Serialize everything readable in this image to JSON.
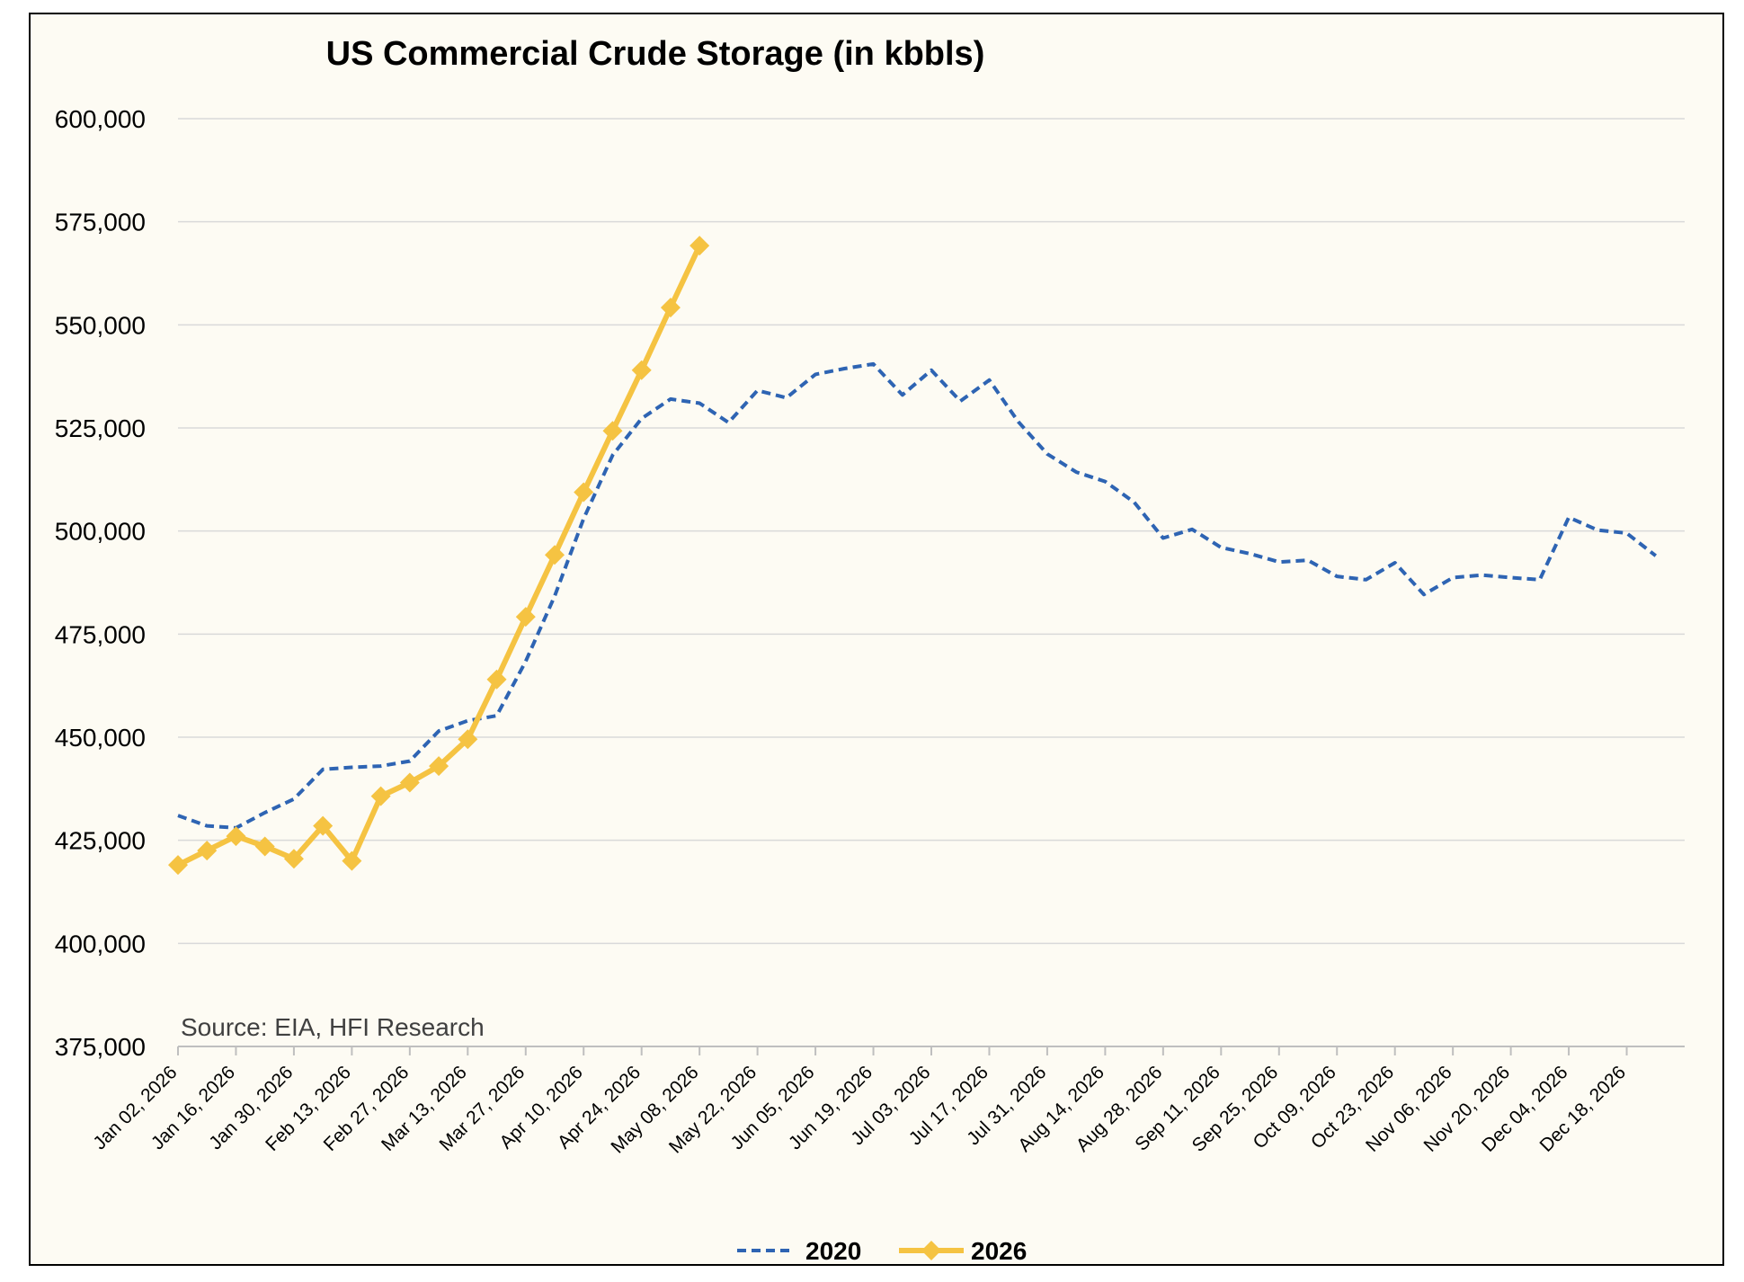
{
  "chart_data": {
    "type": "line",
    "title": "US Commercial Crude Storage (in kbbls)",
    "annotation": "Source: EIA, HFI Research",
    "xlabel": "",
    "ylabel": "",
    "ylim": [
      375000,
      600000
    ],
    "yticks": [
      375000,
      400000,
      425000,
      450000,
      475000,
      500000,
      525000,
      550000,
      575000,
      600000
    ],
    "ytick_labels": [
      "375,000",
      "400,000",
      "425,000",
      "450,000",
      "475,000",
      "500,000",
      "525,000",
      "550,000",
      "575,000",
      "600,000"
    ],
    "grid": true,
    "legend_position": "bottom-center",
    "x_tick_labels": [
      "Jan 02, 2026",
      "Jan 16, 2026",
      "Jan 30, 2026",
      "Feb 13, 2026",
      "Feb 27, 2026",
      "Mar 13, 2026",
      "Mar 27, 2026",
      "Apr 10, 2026",
      "Apr 24, 2026",
      "May 08, 2026",
      "May 22, 2026",
      "Jun 05, 2026",
      "Jun 19, 2026",
      "Jul 03, 2026",
      "Jul 17, 2026",
      "Jul 31, 2026",
      "Aug 14, 2026",
      "Aug 28, 2026",
      "Sep 11, 2026",
      "Sep 25, 2026",
      "Oct 09, 2026",
      "Oct 23, 2026",
      "Nov 06, 2026",
      "Nov 20, 2026",
      "Dec 04, 2026",
      "Dec 18, 2026"
    ],
    "x_tick_every": 2,
    "num_weeks": 52,
    "series": [
      {
        "name": "2020",
        "color": "#2e64b3",
        "style": "dashed",
        "values": [
          431000,
          428500,
          428000,
          431700,
          435000,
          442200,
          442700,
          443000,
          444200,
          451500,
          454000,
          455200,
          468400,
          484200,
          503000,
          518400,
          527300,
          532000,
          531000,
          526300,
          534100,
          532300,
          538000,
          539400,
          540500,
          533000,
          539000,
          531500,
          536600,
          526500,
          518700,
          514300,
          512000,
          507000,
          498300,
          500400,
          496000,
          494500,
          492500,
          492900,
          489000,
          488200,
          492300,
          484600,
          488700,
          489300,
          488700,
          488200,
          503300,
          500200,
          499500,
          494000
        ]
      },
      {
        "name": "2026",
        "color": "#f5c342",
        "style": "solid-diamond",
        "values": [
          419000,
          422500,
          426000,
          423500,
          420500,
          428500,
          420000,
          435700,
          439000,
          443000,
          449500,
          464000,
          479200,
          494200,
          509400,
          524300,
          539000,
          554200,
          569200
        ]
      }
    ]
  }
}
